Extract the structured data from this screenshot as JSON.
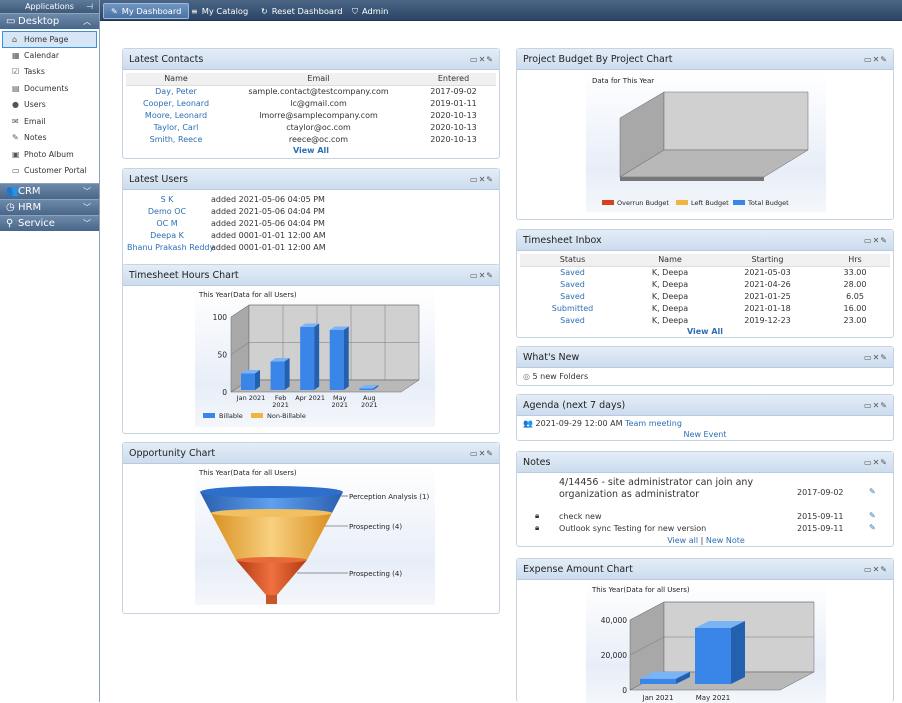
{
  "sidebar": {
    "app_title": "Applications",
    "desktop": {
      "label": "Desktop",
      "items": [
        {
          "label": "Home Page",
          "icon": "home-icon"
        },
        {
          "label": "Calendar",
          "icon": "calendar-icon"
        },
        {
          "label": "Tasks",
          "icon": "tasks-icon"
        },
        {
          "label": "Documents",
          "icon": "documents-icon"
        },
        {
          "label": "Users",
          "icon": "users-icon"
        },
        {
          "label": "Email",
          "icon": "email-icon"
        },
        {
          "label": "Notes",
          "icon": "notes-icon"
        },
        {
          "label": "Photo Album",
          "icon": "photo-icon"
        },
        {
          "label": "Customer Portal",
          "icon": "portal-icon"
        }
      ]
    },
    "sections": [
      {
        "label": "CRM",
        "icon": "crm-icon"
      },
      {
        "label": "HRM",
        "icon": "hrm-icon"
      },
      {
        "label": "Service",
        "icon": "service-icon"
      }
    ]
  },
  "topbar": {
    "tabs": [
      {
        "label": "My Dashboard",
        "icon": "pencil-icon"
      },
      {
        "label": "My Catalog",
        "icon": "list-icon"
      },
      {
        "label": "Reset Dashboard",
        "icon": "reset-icon"
      },
      {
        "label": "Admin",
        "icon": "shield-icon"
      }
    ]
  },
  "latest_contacts": {
    "title": "Latest Contacts",
    "headers": [
      "Name",
      "Email",
      "Entered"
    ],
    "rows": [
      [
        "Day, Peter",
        "sample.contact@testcompany.com",
        "2017-09-02"
      ],
      [
        "Cooper, Leonard",
        "lc@gmail.com",
        "2019-01-11"
      ],
      [
        "Moore, Leonard",
        "lmorre@samplecompany.com",
        "2020-10-13"
      ],
      [
        "Taylor, Carl",
        "ctaylor@oc.com",
        "2020-10-13"
      ],
      [
        "Smith, Reece",
        "reece@oc.com",
        "2020-10-13"
      ]
    ],
    "view_all": "View All"
  },
  "latest_users": {
    "title": "Latest Users",
    "rows": [
      [
        "S K",
        "added 2021-05-06 04:05 PM"
      ],
      [
        "Demo OC",
        "added 2021-05-06 04:04 PM"
      ],
      [
        "OC M",
        "added 2021-05-06 04:04 PM"
      ],
      [
        "Deepa K",
        "added 0001-01-01 12:00 AM"
      ],
      [
        "Bhanu Prakash Reddy",
        "added 0001-01-01 12:00 AM"
      ]
    ]
  },
  "timesheet_chart": {
    "title": "Timesheet Hours Chart",
    "subtitle": "This Year(Data for all Users)",
    "legend": [
      "Billable",
      "Non-Billable"
    ]
  },
  "opportunity_chart": {
    "title": "Opportunity Chart",
    "subtitle": "This Year(Data for all Users)"
  },
  "budget_chart": {
    "title": "Project Budget By Project Chart",
    "subtitle": "Data for This Year",
    "legend": [
      "Overrun Budget",
      "Left Budget",
      "Total Budget"
    ]
  },
  "timesheet_inbox": {
    "title": "Timesheet Inbox",
    "headers": [
      "Status",
      "Name",
      "Starting",
      "Hrs"
    ],
    "rows": [
      [
        "Saved",
        "K, Deepa",
        "2021-05-03",
        "33.00"
      ],
      [
        "Saved",
        "K, Deepa",
        "2021-04-26",
        "28.00"
      ],
      [
        "Saved",
        "K, Deepa",
        "2021-01-25",
        "6.05"
      ],
      [
        "Submitted",
        "K, Deepa",
        "2021-01-18",
        "16.00"
      ],
      [
        "Saved",
        "K, Deepa",
        "2019-12-23",
        "23.00"
      ]
    ],
    "view_all": "View All"
  },
  "whats_new": {
    "title": "What's New",
    "item": "5 new Folders"
  },
  "agenda": {
    "title": "Agenda (next 7 days)",
    "event_time": "2021-09-29 12:00 AM",
    "event_name": "Team meeting",
    "new_event": "New Event"
  },
  "notes": {
    "title": "Notes",
    "items": [
      {
        "text": "4/14456 - site administrator can join any organization as administrator",
        "date": "2017-09-02",
        "locked": false
      },
      {
        "text": "check new",
        "date": "2015-09-11",
        "locked": true
      },
      {
        "text": "Outlook sync Testing for new version",
        "date": "2015-09-11",
        "locked": true
      }
    ],
    "view_all": "View all",
    "separator": "|",
    "new_note": "New Note"
  },
  "expense_chart": {
    "title": "Expense Amount Chart",
    "subtitle": "This Year(Data for all Users)"
  },
  "colors": {
    "accent": "#2c6fb6",
    "bar_blue": "#3a86e8",
    "bar_orange": "#f0b540",
    "bar_red": "#d9411a"
  },
  "chart_data": [
    {
      "type": "bar",
      "name": "timesheet",
      "categories": [
        "Jan 2021",
        "Feb 2021",
        "Apr 2021",
        "May 2021",
        "Aug 2021"
      ],
      "category_labels": [
        [
          "Jan 2021"
        ],
        [
          "Feb",
          "2021"
        ],
        [
          "Apr 2021"
        ],
        [
          "May",
          "2021"
        ],
        [
          "Aug",
          "2021"
        ]
      ],
      "series": [
        {
          "name": "Billable",
          "values": [
            22,
            38,
            84,
            80,
            1
          ]
        },
        {
          "name": "Non-Billable",
          "values": [
            0,
            0,
            0,
            0,
            0
          ]
        }
      ],
      "yticks": [
        "0",
        "50",
        "100"
      ],
      "ylim": [
        0,
        100
      ],
      "grid": true,
      "legend": "bottom"
    },
    {
      "type": "funnel",
      "name": "opportunity",
      "stages": [
        {
          "label": "Perception Analysis (1)",
          "value": 1
        },
        {
          "label": "Prospecting (4)",
          "value": 4
        },
        {
          "label": "Prospecting (4)",
          "value": 4
        }
      ]
    },
    {
      "type": "bar",
      "name": "budget",
      "categories": [],
      "series": [],
      "legend": "bottom"
    },
    {
      "type": "bar",
      "name": "expense",
      "categories": [
        "Jan 2021",
        "May 2021"
      ],
      "values": [
        3000,
        32000
      ],
      "yticks": [
        "0",
        "20,000",
        "40,000"
      ],
      "ylim": [
        0,
        40000
      ],
      "grid": true
    }
  ]
}
